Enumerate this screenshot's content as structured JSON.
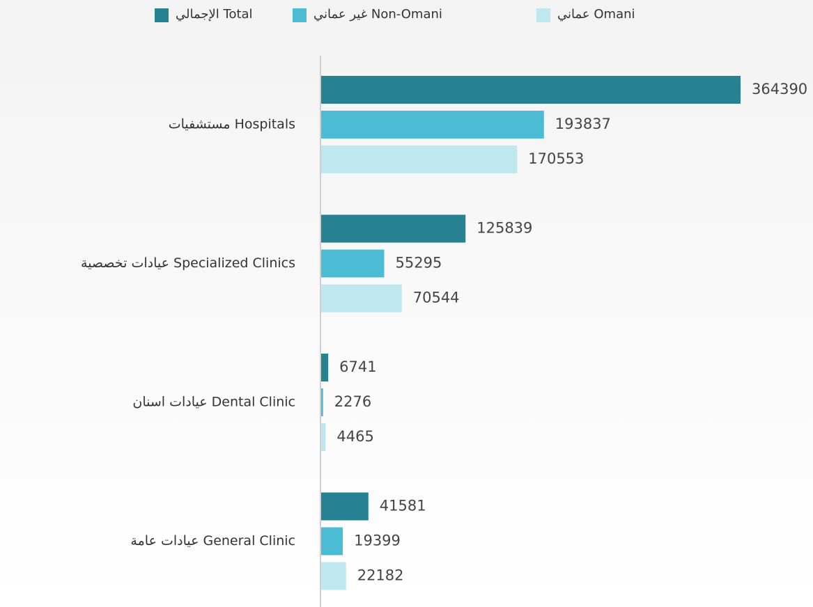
{
  "chart_data": {
    "type": "bar",
    "orientation": "horizontal",
    "categories": [
      "مستشفيات Hospitals",
      "عيادات تخصصية  Specialized Clinics",
      "عيادات اسنان Dental Clinic",
      "عيادات عامة General Clinic"
    ],
    "series": [
      {
        "name": "الإجمالي Total",
        "color": "#268292",
        "values": [
          364390,
          125839,
          6741,
          41581
        ]
      },
      {
        "name": "غير عماني Non-Omani",
        "color": "#4bbcd3",
        "values": [
          193837,
          55295,
          2276,
          19399
        ]
      },
      {
        "name": "عماني Omani",
        "color": "#bfe7ef",
        "values": [
          170553,
          70544,
          4465,
          22182
        ]
      }
    ]
  }
}
